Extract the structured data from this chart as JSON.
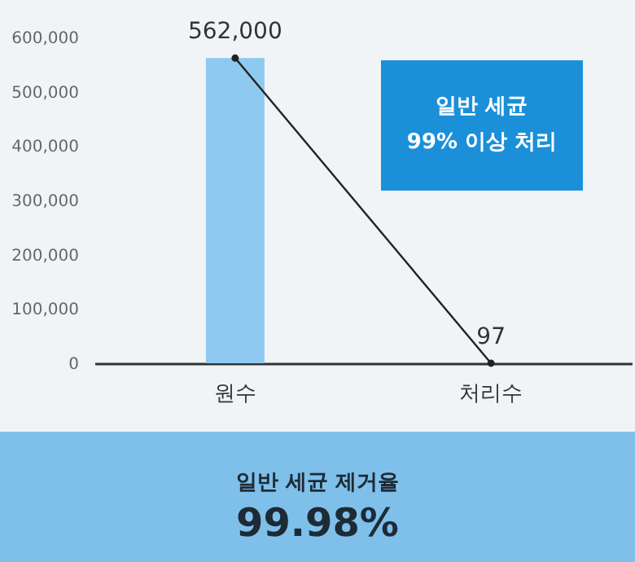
{
  "chart_data": {
    "type": "bar",
    "categories": [
      "원수",
      "처리수"
    ],
    "series": [
      {
        "colors": [
          "#8ec9ef",
          "#2f6e78"
        ],
        "values": [
          562000,
          97
        ],
        "value_labels": [
          "562,000",
          "97"
        ]
      },
      {
        "type": "line",
        "color": "#222222",
        "values": [
          562000,
          97
        ]
      }
    ],
    "ylim": [
      0,
      600000
    ],
    "yticks": [
      0,
      {
        "value": 100000,
        "label": "100,000"
      },
      {
        "value": 200000,
        "label": "200,000"
      },
      {
        "value": 300000,
        "label": "300,000"
      },
      {
        "value": 400000,
        "label": "400,000"
      },
      {
        "value": 500000,
        "label": "500,000"
      },
      {
        "value": 600000,
        "label": "600,000"
      }
    ],
    "marker": "circle",
    "annotations": [
      "일반 세균\n99% 이상 처리",
      "일반 세균 제거율",
      "99.98%"
    ]
  }
}
